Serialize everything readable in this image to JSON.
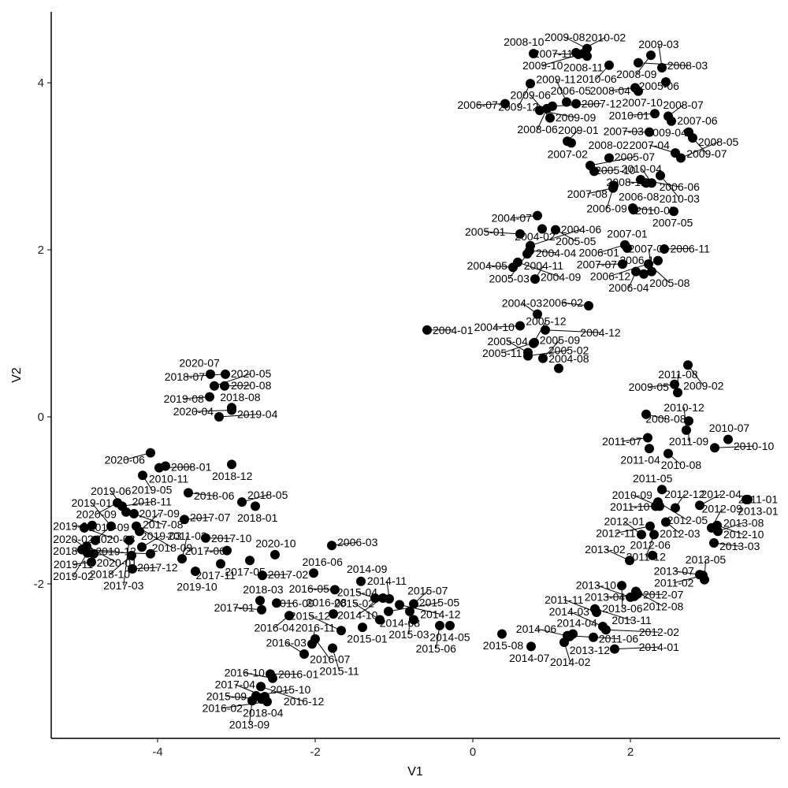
{
  "chart_data": {
    "type": "scatter",
    "title": "",
    "xlabel": "V1",
    "ylabel": "V2",
    "xlim": [
      -5.35,
      3.9
    ],
    "ylim": [
      -3.85,
      4.85
    ],
    "grid": false,
    "xticks": [
      -4,
      -2,
      0,
      2
    ],
    "yticks": [
      -2,
      0,
      2,
      4
    ],
    "points": [
      {
        "label": "2004-01",
        "x": -0.58,
        "y": 1.04
      },
      {
        "label": "2004-02",
        "x": 0.88,
        "y": 2.25
      },
      {
        "label": "2004-03",
        "x": 0.82,
        "y": 1.23
      },
      {
        "label": "2004-04",
        "x": 0.72,
        "y": 1.99
      },
      {
        "label": "2004-05",
        "x": 0.51,
        "y": 1.79
      },
      {
        "label": "2004-06",
        "x": 0.73,
        "y": 2.05
      },
      {
        "label": "2004-07",
        "x": 0.82,
        "y": 2.41
      },
      {
        "label": "2004-08",
        "x": 1.09,
        "y": 0.58
      },
      {
        "label": "2004-09",
        "x": 0.57,
        "y": 1.85
      },
      {
        "label": "2004-10",
        "x": 0.6,
        "y": 1.09
      },
      {
        "label": "2004-11",
        "x": 0.79,
        "y": 1.65
      },
      {
        "label": "2004-12",
        "x": 0.92,
        "y": 1.04
      },
      {
        "label": "2005-01",
        "x": 0.6,
        "y": 2.19
      },
      {
        "label": "2005-02",
        "x": 0.7,
        "y": 0.73
      },
      {
        "label": "2005-03",
        "x": 0.69,
        "y": 1.95
      },
      {
        "label": "2005-04",
        "x": 0.7,
        "y": 0.77
      },
      {
        "label": "2005-05",
        "x": 1.05,
        "y": 2.24
      },
      {
        "label": "2005-06",
        "x": 2.45,
        "y": 4.01
      },
      {
        "label": "2005-07",
        "x": 1.49,
        "y": 3.01
      },
      {
        "label": "2005-08",
        "x": 2.23,
        "y": 1.83
      },
      {
        "label": "2005-09",
        "x": 0.89,
        "y": 0.7
      },
      {
        "label": "2005-10",
        "x": 1.54,
        "y": 2.94
      },
      {
        "label": "2005-11",
        "x": 0.78,
        "y": 0.89
      },
      {
        "label": "2005-12",
        "x": 0.77,
        "y": 0.88
      },
      {
        "label": "2006-01",
        "x": 1.93,
        "y": 2.06
      },
      {
        "label": "2006-02",
        "x": 1.47,
        "y": 1.33
      },
      {
        "label": "2006-03",
        "x": -1.79,
        "y": -1.54
      },
      {
        "label": "2006-04",
        "x": 2.07,
        "y": 1.74
      },
      {
        "label": "2006-05",
        "x": 1.31,
        "y": 3.75
      },
      {
        "label": "2006-06",
        "x": 2.13,
        "y": 2.84
      },
      {
        "label": "2006-07",
        "x": 0.41,
        "y": 3.75
      },
      {
        "label": "2006-08",
        "x": 2.04,
        "y": 2.48
      },
      {
        "label": "2006-09",
        "x": 1.79,
        "y": 2.77
      },
      {
        "label": "2006-10",
        "x": 2.17,
        "y": 1.71
      },
      {
        "label": "2006-11",
        "x": 2.43,
        "y": 2.01
      },
      {
        "label": "2006-12",
        "x": 2.35,
        "y": 1.87
      },
      {
        "label": "2007-01",
        "x": 1.96,
        "y": 2.02
      },
      {
        "label": "2007-02",
        "x": 1.25,
        "y": 3.28
      },
      {
        "label": "2007-03",
        "x": 2.24,
        "y": 3.41
      },
      {
        "label": "2007-04",
        "x": 2.57,
        "y": 3.16
      },
      {
        "label": "2007-05",
        "x": 2.55,
        "y": 2.46
      },
      {
        "label": "2007-06",
        "x": 2.74,
        "y": 3.41
      },
      {
        "label": "2007-07",
        "x": 1.9,
        "y": 1.83
      },
      {
        "label": "2007-08",
        "x": 1.78,
        "y": 2.74
      },
      {
        "label": "2007-09",
        "x": 2.27,
        "y": 1.74
      },
      {
        "label": "2007-10",
        "x": 2.1,
        "y": 3.9
      },
      {
        "label": "2007-11",
        "x": 1.34,
        "y": 4.34
      },
      {
        "label": "2007-12",
        "x": 1.01,
        "y": 3.72
      },
      {
        "label": "2008-01",
        "x": -3.98,
        "y": -0.61
      },
      {
        "label": "2008-02",
        "x": 1.73,
        "y": 3.1
      },
      {
        "label": "2008-03",
        "x": 2.1,
        "y": 4.24
      },
      {
        "label": "2008-04",
        "x": 2.06,
        "y": 3.94
      },
      {
        "label": "2008-05",
        "x": 2.64,
        "y": 3.1
      },
      {
        "label": "2008-06",
        "x": 0.94,
        "y": 3.69
      },
      {
        "label": "2008-07",
        "x": 2.48,
        "y": 3.6
      },
      {
        "label": "2008-08",
        "x": 2.2,
        "y": 0.03
      },
      {
        "label": "2008-09",
        "x": 2.26,
        "y": 4.33
      },
      {
        "label": "2008-10",
        "x": 0.77,
        "y": 4.35
      },
      {
        "label": "2008-11",
        "x": 1.45,
        "y": 4.32
      },
      {
        "label": "2008-12",
        "x": 2.2,
        "y": 2.8
      },
      {
        "label": "2009-01",
        "x": 1.2,
        "y": 3.3
      },
      {
        "label": "2009-02",
        "x": 2.73,
        "y": 0.62
      },
      {
        "label": "2009-03",
        "x": 2.4,
        "y": 4.18
      },
      {
        "label": "2009-04",
        "x": 2.52,
        "y": 3.54
      },
      {
        "label": "2009-05",
        "x": 2.56,
        "y": 0.39
      },
      {
        "label": "2009-06",
        "x": 0.98,
        "y": 3.58
      },
      {
        "label": "2009-07",
        "x": 2.79,
        "y": 3.34
      },
      {
        "label": "2009-08",
        "x": 1.45,
        "y": 4.41
      },
      {
        "label": "2009-09",
        "x": 0.85,
        "y": 3.67
      },
      {
        "label": "2009-10",
        "x": 1.4,
        "y": 4.35
      },
      {
        "label": "2009-11",
        "x": 1.19,
        "y": 3.77
      },
      {
        "label": "2009-12",
        "x": 0.73,
        "y": 3.99
      },
      {
        "label": "2010-01",
        "x": 2.31,
        "y": 3.63
      },
      {
        "label": "2010-02",
        "x": 1.31,
        "y": 4.36
      },
      {
        "label": "2010-03",
        "x": 2.38,
        "y": 2.89
      },
      {
        "label": "2010-04",
        "x": 2.27,
        "y": 2.8
      },
      {
        "label": "2010-05",
        "x": 2.03,
        "y": 2.5
      },
      {
        "label": "2010-06",
        "x": 1.73,
        "y": 4.21
      },
      {
        "label": "2010-07",
        "x": 3.24,
        "y": -0.27
      },
      {
        "label": "2010-08",
        "x": 2.48,
        "y": -0.44
      },
      {
        "label": "2010-09",
        "x": 2.37,
        "y": -1.07
      },
      {
        "label": "2010-10",
        "x": 3.07,
        "y": -0.37
      },
      {
        "label": "2010-11",
        "x": -3.9,
        "y": -0.59
      },
      {
        "label": "2010-12",
        "x": 2.71,
        "y": -0.16
      },
      {
        "label": "2011-01",
        "x": 3.47,
        "y": -0.99
      },
      {
        "label": "2011-02",
        "x": 2.92,
        "y": -1.9
      },
      {
        "label": "2011-03",
        "x": -3.69,
        "y": -1.7
      },
      {
        "label": "2011-04",
        "x": 2.24,
        "y": -0.38
      },
      {
        "label": "2011-05",
        "x": 2.4,
        "y": -0.87
      },
      {
        "label": "2011-06",
        "x": 1.2,
        "y": -2.62
      },
      {
        "label": "2011-07",
        "x": 2.22,
        "y": -0.25
      },
      {
        "label": "2011-08",
        "x": 2.6,
        "y": 0.29
      },
      {
        "label": "2011-09",
        "x": 2.74,
        "y": -0.05
      },
      {
        "label": "2011-10",
        "x": 2.32,
        "y": -1.07
      },
      {
        "label": "2011-11",
        "x": 1.57,
        "y": -2.34
      },
      {
        "label": "2011-12",
        "x": 2.3,
        "y": -1.41
      },
      {
        "label": "2012-01",
        "x": 2.14,
        "y": -1.41
      },
      {
        "label": "2012-02",
        "x": 1.69,
        "y": -2.55
      },
      {
        "label": "2012-03",
        "x": 2.45,
        "y": -1.26
      },
      {
        "label": "2012-04",
        "x": 2.88,
        "y": -1.06
      },
      {
        "label": "2012-05",
        "x": 2.35,
        "y": -1.02
      },
      {
        "label": "2012-06",
        "x": 2.28,
        "y": -1.66
      },
      {
        "label": "2012-07",
        "x": 2.09,
        "y": -2.12
      },
      {
        "label": "2012-08",
        "x": 2.07,
        "y": -2.09
      },
      {
        "label": "2012-09",
        "x": 3.03,
        "y": -1.33
      },
      {
        "label": "2012-10",
        "x": 3.1,
        "y": -1.3
      },
      {
        "label": "2012-11",
        "x": 2.25,
        "y": -1.31
      },
      {
        "label": "2012-12",
        "x": 2.57,
        "y": -1.09
      },
      {
        "label": "2013-01",
        "x": 3.49,
        "y": -0.99
      },
      {
        "label": "2013-02",
        "x": 1.99,
        "y": -1.72
      },
      {
        "label": "2013-03",
        "x": 3.06,
        "y": -1.51
      },
      {
        "label": "2013-04",
        "x": 2.05,
        "y": -2.15
      },
      {
        "label": "2013-05",
        "x": 2.94,
        "y": -1.95
      },
      {
        "label": "2013-06",
        "x": 1.89,
        "y": -2.02
      },
      {
        "label": "2013-07",
        "x": 2.88,
        "y": -1.89
      },
      {
        "label": "2013-08",
        "x": 3.11,
        "y": -1.37
      },
      {
        "label": "2013-09",
        "x": -2.8,
        "y": -3.4
      },
      {
        "label": "2013-10",
        "x": 2.0,
        "y": -2.16
      },
      {
        "label": "2013-11",
        "x": 1.55,
        "y": -2.3
      },
      {
        "label": "2013-12",
        "x": 1.53,
        "y": -2.64
      },
      {
        "label": "2014-01",
        "x": 1.8,
        "y": -2.78
      },
      {
        "label": "2014-02",
        "x": 1.16,
        "y": -2.7
      },
      {
        "label": "2014-03",
        "x": 1.65,
        "y": -2.51
      },
      {
        "label": "2014-04",
        "x": 1.27,
        "y": -2.6
      },
      {
        "label": "2014-05",
        "x": -0.29,
        "y": -2.5
      },
      {
        "label": "2014-06",
        "x": 1.23,
        "y": -2.63
      },
      {
        "label": "2014-07",
        "x": 0.74,
        "y": -2.75
      },
      {
        "label": "2014-08",
        "x": -0.75,
        "y": -2.43
      },
      {
        "label": "2014-09",
        "x": -1.42,
        "y": -1.97
      },
      {
        "label": "2014-10",
        "x": -1.14,
        "y": -2.17
      },
      {
        "label": "2014-11",
        "x": -1.06,
        "y": -2.18
      },
      {
        "label": "2014-12",
        "x": -0.93,
        "y": -2.25
      },
      {
        "label": "2015-01",
        "x": -1.4,
        "y": -2.52
      },
      {
        "label": "2015-02",
        "x": -1.18,
        "y": -2.43
      },
      {
        "label": "2015-03",
        "x": -0.8,
        "y": -2.33
      },
      {
        "label": "2015-04",
        "x": -1.24,
        "y": -2.17
      },
      {
        "label": "2015-05",
        "x": -1.07,
        "y": -2.33
      },
      {
        "label": "2015-06",
        "x": -0.42,
        "y": -2.5
      },
      {
        "label": "2015-07",
        "x": -0.75,
        "y": -2.24
      },
      {
        "label": "2015-08",
        "x": 0.37,
        "y": -2.6
      },
      {
        "label": "2015-09",
        "x": -2.68,
        "y": -3.38
      },
      {
        "label": "2015-10",
        "x": -2.75,
        "y": -3.34
      },
      {
        "label": "2015-11",
        "x": -1.78,
        "y": -2.77
      },
      {
        "label": "2015-12",
        "x": -1.67,
        "y": -2.56
      },
      {
        "label": "2016-01",
        "x": -2.57,
        "y": -3.08
      },
      {
        "label": "2016-02",
        "x": -2.61,
        "y": -3.41
      },
      {
        "label": "2016-03",
        "x": -2.14,
        "y": -2.84
      },
      {
        "label": "2016-04",
        "x": -2.33,
        "y": -2.38
      },
      {
        "label": "2016-05",
        "x": -1.75,
        "y": -2.07
      },
      {
        "label": "2016-06",
        "x": -2.02,
        "y": -1.87
      },
      {
        "label": "2016-07",
        "x": -2.0,
        "y": -2.66
      },
      {
        "label": "2016-08",
        "x": -1.77,
        "y": -2.36
      },
      {
        "label": "2016-09",
        "x": -2.49,
        "y": -2.23
      },
      {
        "label": "2016-10",
        "x": -2.54,
        "y": -3.13
      },
      {
        "label": "2016-11",
        "x": -2.04,
        "y": -2.72
      },
      {
        "label": "2016-12",
        "x": -2.69,
        "y": -3.23
      },
      {
        "label": "2017-01",
        "x": -2.68,
        "y": -2.31
      },
      {
        "label": "2017-02",
        "x": -2.67,
        "y": -1.9
      },
      {
        "label": "2017-03",
        "x": -4.36,
        "y": -1.48
      },
      {
        "label": "2017-04",
        "x": -2.64,
        "y": -3.35
      },
      {
        "label": "2017-05",
        "x": -2.83,
        "y": -1.72
      },
      {
        "label": "2017-06",
        "x": -3.12,
        "y": -1.6
      },
      {
        "label": "2017-07",
        "x": -3.66,
        "y": -1.23
      },
      {
        "label": "2017-08",
        "x": -4.3,
        "y": -1.16
      },
      {
        "label": "2017-09",
        "x": -4.23,
        "y": -1.37
      },
      {
        "label": "2017-10",
        "x": -3.39,
        "y": -1.45
      },
      {
        "label": "2017-11",
        "x": -3.2,
        "y": -1.76
      },
      {
        "label": "2017-12",
        "x": -4.32,
        "y": -1.82
      },
      {
        "label": "2018-01",
        "x": -2.76,
        "y": -1.07
      },
      {
        "label": "2018-02",
        "x": -4.09,
        "y": -1.64
      },
      {
        "label": "2018-03",
        "x": -2.7,
        "y": -2.2
      },
      {
        "label": "2018-04",
        "x": -2.66,
        "y": -3.36
      },
      {
        "label": "2018-05",
        "x": -2.93,
        "y": -1.02
      },
      {
        "label": "2018-06",
        "x": -3.61,
        "y": -0.91
      },
      {
        "label": "2018-07",
        "x": -3.14,
        "y": 0.51
      },
      {
        "label": "2018-08",
        "x": -3.06,
        "y": 0.11
      },
      {
        "label": "2018-09",
        "x": -4.27,
        "y": -1.31
      },
      {
        "label": "2018-10",
        "x": -4.33,
        "y": -1.66
      },
      {
        "label": "2018-11",
        "x": -4.45,
        "y": -1.07
      },
      {
        "label": "2018-12",
        "x": -3.06,
        "y": -0.57
      },
      {
        "label": "2019-01",
        "x": -4.59,
        "y": -1.31
      },
      {
        "label": "2019-02",
        "x": -4.89,
        "y": -1.63
      },
      {
        "label": "2019-03",
        "x": -4.2,
        "y": -1.56
      },
      {
        "label": "2019-04",
        "x": -3.22,
        "y": 0.0
      },
      {
        "label": "2019-05",
        "x": -4.19,
        "y": -0.7
      },
      {
        "label": "2019-06",
        "x": -4.4,
        "y": -1.14
      },
      {
        "label": "2019-07",
        "x": -4.83,
        "y": -1.3
      },
      {
        "label": "2019-08",
        "x": -3.34,
        "y": 0.24
      },
      {
        "label": "2019-09",
        "x": -4.79,
        "y": -1.48
      },
      {
        "label": "2019-10",
        "x": -3.52,
        "y": -1.85
      },
      {
        "label": "2019-11",
        "x": -4.84,
        "y": -1.74
      },
      {
        "label": "2019-12",
        "x": -4.96,
        "y": -1.59
      },
      {
        "label": "2020-01",
        "x": -4.9,
        "y": -1.55
      },
      {
        "label": "2020-02",
        "x": -4.81,
        "y": -1.64
      },
      {
        "label": "2020-03",
        "x": -4.93,
        "y": -1.33
      },
      {
        "label": "2020-04",
        "x": -3.06,
        "y": 0.08
      },
      {
        "label": "2020-05",
        "x": -3.28,
        "y": 0.37
      },
      {
        "label": "2020-06",
        "x": -4.09,
        "y": -0.43
      },
      {
        "label": "2020-07",
        "x": -3.33,
        "y": 0.51
      },
      {
        "label": "2020-08",
        "x": -3.15,
        "y": 0.37
      },
      {
        "label": "2020-09",
        "x": -4.51,
        "y": -1.03
      },
      {
        "label": "2020-10",
        "x": -2.51,
        "y": -1.65
      }
    ]
  }
}
